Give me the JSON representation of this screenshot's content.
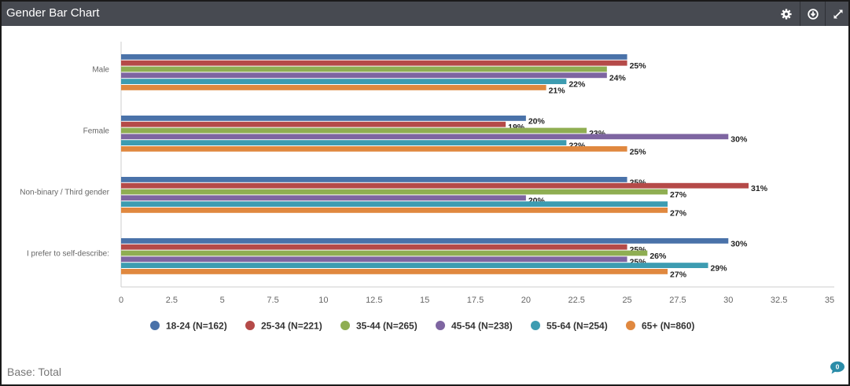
{
  "header": {
    "title": "Gender Bar Chart",
    "icons": [
      "gear-icon",
      "download-icon",
      "expand-icon"
    ]
  },
  "footer": {
    "base_label": "Base: Total",
    "comment_count": "0"
  },
  "chart_data": {
    "type": "bar",
    "orientation": "horizontal",
    "categories": [
      "Male",
      "Female",
      "Non-binary / Third gender",
      "I prefer to self-describe:"
    ],
    "series": [
      {
        "name": "18-24 (N=162)",
        "color": "#4a72a9",
        "values": [
          25,
          20,
          25,
          30
        ],
        "labels": [
          "",
          "20%",
          "25%",
          "30%"
        ]
      },
      {
        "name": "25-34 (N=221)",
        "color": "#b54a48",
        "values": [
          25,
          19,
          31,
          25
        ],
        "labels": [
          "25%",
          "19%",
          "31%",
          "25%"
        ]
      },
      {
        "name": "35-44 (N=265)",
        "color": "#8fae52",
        "values": [
          24,
          23,
          27,
          26
        ],
        "labels": [
          "",
          "23%",
          "27%",
          "26%"
        ]
      },
      {
        "name": "45-54 (N=238)",
        "color": "#7e65a1",
        "values": [
          24,
          30,
          20,
          25
        ],
        "labels": [
          "24%",
          "30%",
          "20%",
          "25%"
        ]
      },
      {
        "name": "55-64 (N=254)",
        "color": "#3d9cb1",
        "values": [
          22,
          22,
          27,
          29
        ],
        "labels": [
          "22%",
          "22%",
          "",
          "29%"
        ]
      },
      {
        "name": "65+ (N=860)",
        "color": "#e0883f",
        "values": [
          21,
          25,
          27,
          27
        ],
        "labels": [
          "21%",
          "25%",
          "27%",
          "27%"
        ]
      }
    ],
    "xlim": [
      0,
      35
    ],
    "xticks": [
      "0",
      "2.5",
      "5",
      "7.5",
      "10",
      "12.5",
      "15",
      "17.5",
      "20",
      "22.5",
      "25",
      "27.5",
      "30",
      "32.5",
      "35"
    ],
    "grid": false,
    "legend_position": "bottom"
  }
}
